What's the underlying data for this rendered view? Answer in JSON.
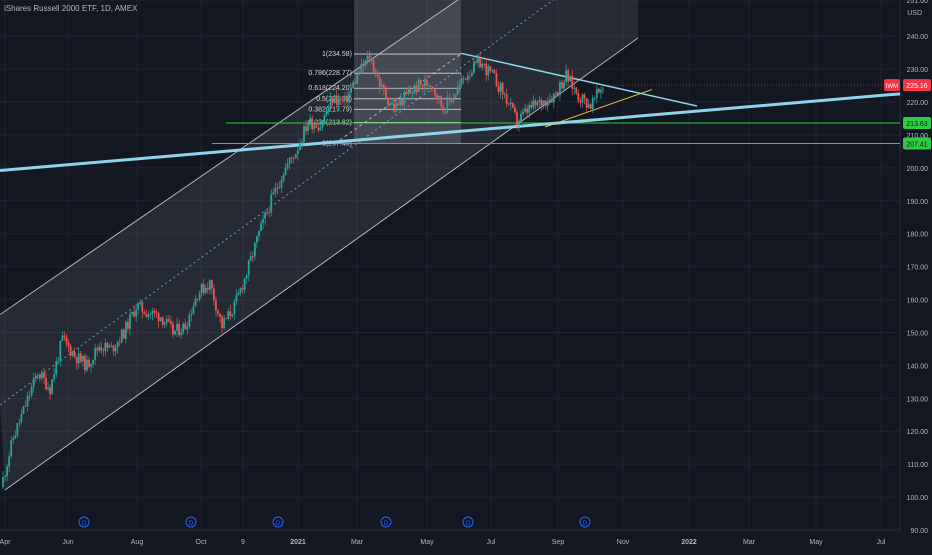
{
  "header": {
    "title": "iShares Russell 2000 ETF, 1D, AMEX",
    "currency": "USD"
  },
  "chart_data": {
    "type": "candlestick",
    "title": "iShares Russell 2000 ETF, 1D, AMEX",
    "y_unit": "USD",
    "ylim": [
      90,
      251
    ],
    "y_ticks": [
      90.0,
      100.0,
      110.0,
      120.0,
      130.0,
      140.0,
      150.0,
      160.0,
      170.0,
      180.0,
      190.0,
      200.0,
      210.0,
      220.0,
      230.0,
      240.0,
      251.0
    ],
    "x_ticks": [
      "Apr",
      "Jun",
      "Aug",
      "Oct",
      "9",
      "2021",
      "Mar",
      "May",
      "Jul",
      "Sep",
      "Nov",
      "2022",
      "Mar",
      "May",
      "Jul"
    ],
    "bold_x_ticks": [
      "2021",
      "2022"
    ],
    "last_price": {
      "symbol": "IWM",
      "value": 225.16,
      "color": "#f23645"
    },
    "level_lines": [
      {
        "value": 213.63,
        "label": "213.63",
        "color": "#2ecc40"
      },
      {
        "value": 207.41,
        "label": "207.41",
        "color": "#2ecc40"
      }
    ],
    "fib_levels": [
      {
        "ratio": "1",
        "value": 234.58,
        "label": "1(234.58)"
      },
      {
        "ratio": "0.786",
        "value": 228.77,
        "label": "0.786(228.77)"
      },
      {
        "ratio": "0.618",
        "value": 224.2,
        "label": "0.618(224.20)"
      },
      {
        "ratio": "0.5",
        "value": 220.99,
        "label": "0.5(220.99)"
      },
      {
        "ratio": "0.382",
        "value": 217.79,
        "label": "0.382(217.79)"
      },
      {
        "ratio": "0.236",
        "value": 213.82,
        "label": "0.236(213.82)"
      },
      {
        "ratio": "0",
        "value": 207.4,
        "label": "0(207.40)"
      }
    ],
    "price_path": [
      [
        "Apr",
        103
      ],
      [
        "Apr",
        118
      ],
      [
        "Apr",
        128
      ],
      [
        "Apr",
        138
      ],
      [
        "Apr",
        133
      ],
      [
        "Jun",
        148
      ],
      [
        "Jun",
        143
      ],
      [
        "Jun",
        140
      ],
      [
        "Jun",
        146
      ],
      [
        "Jun",
        145
      ],
      [
        "Aug",
        150
      ],
      [
        "Aug",
        158
      ],
      [
        "Aug",
        156
      ],
      [
        "Aug",
        155
      ],
      [
        "Aug",
        150
      ],
      [
        "Oct",
        152
      ],
      [
        "Oct",
        162
      ],
      [
        "Oct",
        165
      ],
      [
        "Oct",
        152
      ],
      [
        "Oct",
        158
      ],
      [
        "9",
        168
      ],
      [
        "9",
        180
      ],
      [
        "9",
        190
      ],
      [
        "9",
        199
      ],
      [
        "9",
        205
      ],
      [
        "2021",
        214
      ],
      [
        "2021",
        213
      ],
      [
        "2021",
        221
      ],
      [
        "2021",
        220
      ],
      [
        "2021",
        228
      ],
      [
        "Mar",
        234
      ],
      [
        "Mar",
        224
      ],
      [
        "Mar",
        218
      ],
      [
        "Mar",
        222
      ],
      [
        "Mar",
        225
      ],
      [
        "May",
        226
      ],
      [
        "May",
        218
      ],
      [
        "May",
        223
      ],
      [
        "May",
        229
      ],
      [
        "May",
        232
      ],
      [
        "Jul",
        228
      ],
      [
        "Jul",
        222
      ],
      [
        "Jul",
        214
      ],
      [
        "Jul",
        218
      ],
      [
        "Jul",
        220
      ],
      [
        "Sep",
        222
      ],
      [
        "Sep",
        228
      ],
      [
        "Sep",
        222
      ],
      [
        "Sep",
        219
      ],
      [
        "Sep",
        225
      ]
    ],
    "dividend_markers": [
      "Jun",
      "Oct",
      "2021",
      "Mar",
      "Jul",
      "Sep"
    ],
    "dividend_label": "D"
  }
}
